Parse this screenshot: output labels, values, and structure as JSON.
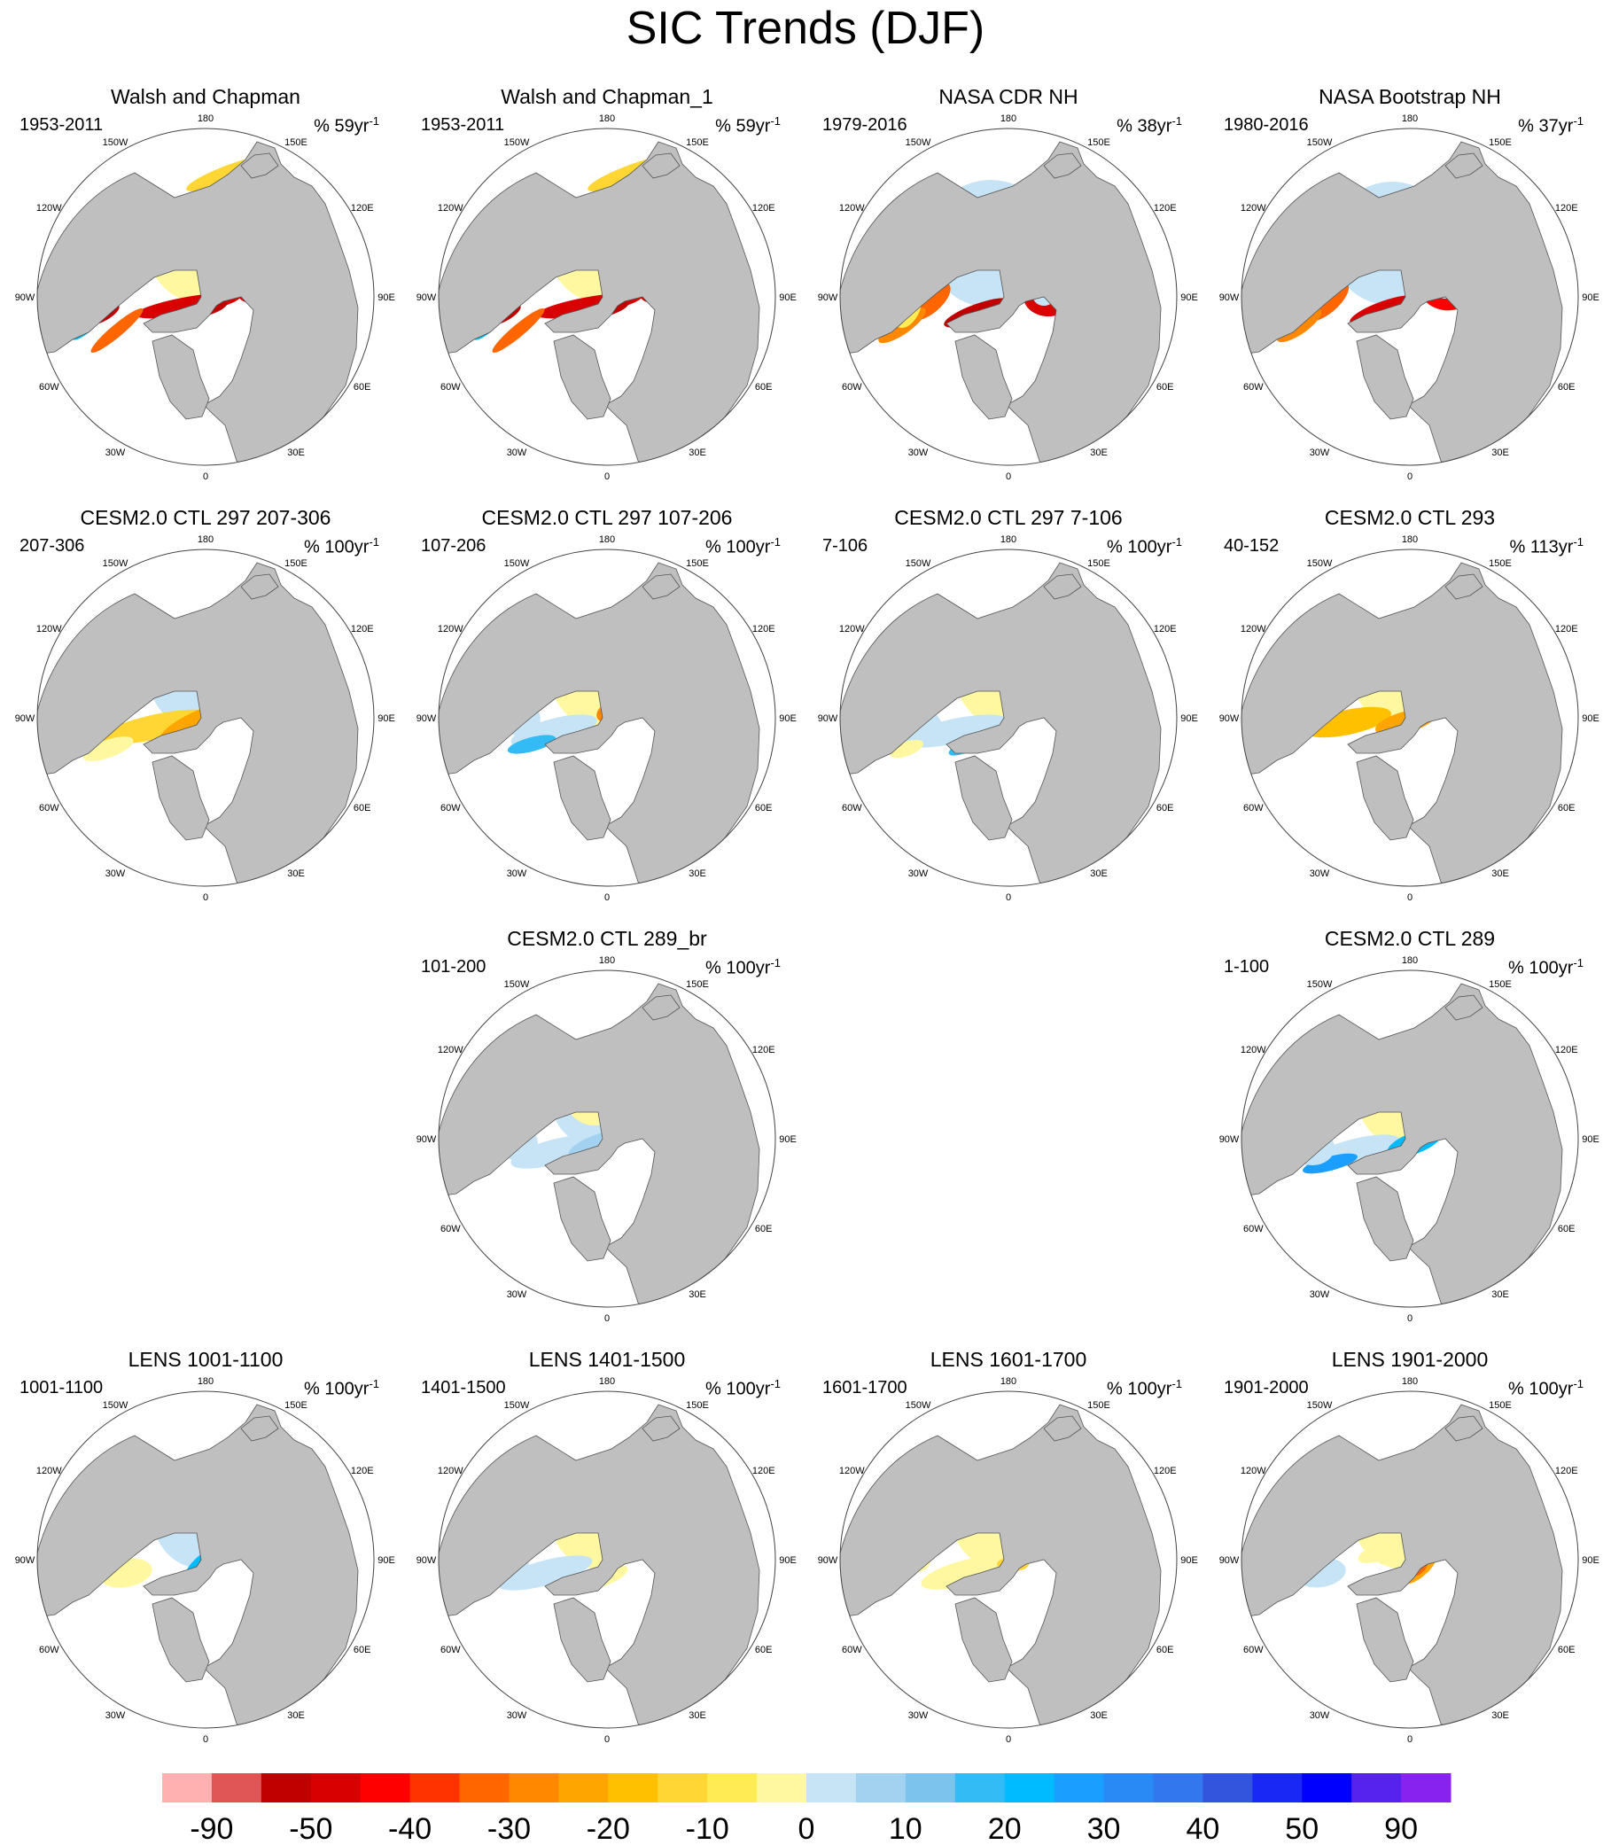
{
  "title": "SIC Trends (DJF)",
  "colors": {
    "ocean": "#ffffff",
    "land": "#bfbfbf",
    "coast": "#555555",
    "frame": "#444444"
  },
  "rate_prefix": "% ",
  "rate_suffix": "yr",
  "rate_exponent": "-1",
  "panels": [
    {
      "title": "Walsh and Chapman",
      "period": "1953-2011",
      "rate": "59",
      "pattern": "obs1"
    },
    {
      "title": "Walsh and Chapman_1",
      "period": "1953-2011",
      "rate": "59",
      "pattern": "obs1"
    },
    {
      "title": "NASA CDR NH",
      "period": "1979-2016",
      "rate": "38",
      "pattern": "obs2"
    },
    {
      "title": "NASA Bootstrap NH",
      "period": "1980-2016",
      "rate": "37",
      "pattern": "obs3"
    },
    {
      "title": "CESM2.0 CTL 297 207-306",
      "period": "207-306",
      "rate": "100",
      "pattern": "m1"
    },
    {
      "title": "CESM2.0 CTL 297 107-206",
      "period": "107-206",
      "rate": "100",
      "pattern": "m2"
    },
    {
      "title": "CESM2.0 CTL 297 7-106",
      "period": "7-106",
      "rate": "100",
      "pattern": "m3"
    },
    {
      "title": "CESM2.0 CTL 293",
      "period": "40-152",
      "rate": "113",
      "pattern": "m4"
    },
    {
      "title": "CESM2.0 CTL 289_br",
      "period": "101-200",
      "rate": "100",
      "pattern": "m5"
    },
    {
      "title": "CESM2.0 CTL 289",
      "period": "1-100",
      "rate": "100",
      "pattern": "m6"
    },
    {
      "title": "LENS 1001-1100",
      "period": "1001-1100",
      "rate": "100",
      "pattern": "l1"
    },
    {
      "title": "LENS 1401-1500",
      "period": "1401-1500",
      "rate": "100",
      "pattern": "l2"
    },
    {
      "title": "LENS 1601-1700",
      "period": "1601-1700",
      "rate": "100",
      "pattern": "l3"
    },
    {
      "title": "LENS 1901-2000",
      "period": "1901-2000",
      "rate": "100",
      "pattern": "l4"
    }
  ],
  "longitude_labels": [
    "180",
    "150E",
    "120E",
    "90E",
    "60E",
    "30E",
    "0",
    "30W",
    "60W",
    "90W",
    "120W",
    "150W"
  ],
  "colorbar": {
    "colors": [
      "#ffb0b0",
      "#e05555",
      "#c00000",
      "#d80000",
      "#ff0000",
      "#ff3300",
      "#ff6600",
      "#ff8800",
      "#ffa500",
      "#ffc000",
      "#ffd633",
      "#ffec55",
      "#fff8a0",
      "#c6e4f6",
      "#a2d2f0",
      "#7cc4ee",
      "#33bbf5",
      "#00bbff",
      "#1a9eff",
      "#2a8af5",
      "#3377ee",
      "#3355dd",
      "#1a28f5",
      "#0000ff",
      "#5522ee",
      "#8822ee"
    ],
    "labels": [
      "-90",
      "-50",
      "-40",
      "-30",
      "-20",
      "-10",
      "0",
      "10",
      "20",
      "30",
      "40",
      "50",
      "90"
    ]
  }
}
